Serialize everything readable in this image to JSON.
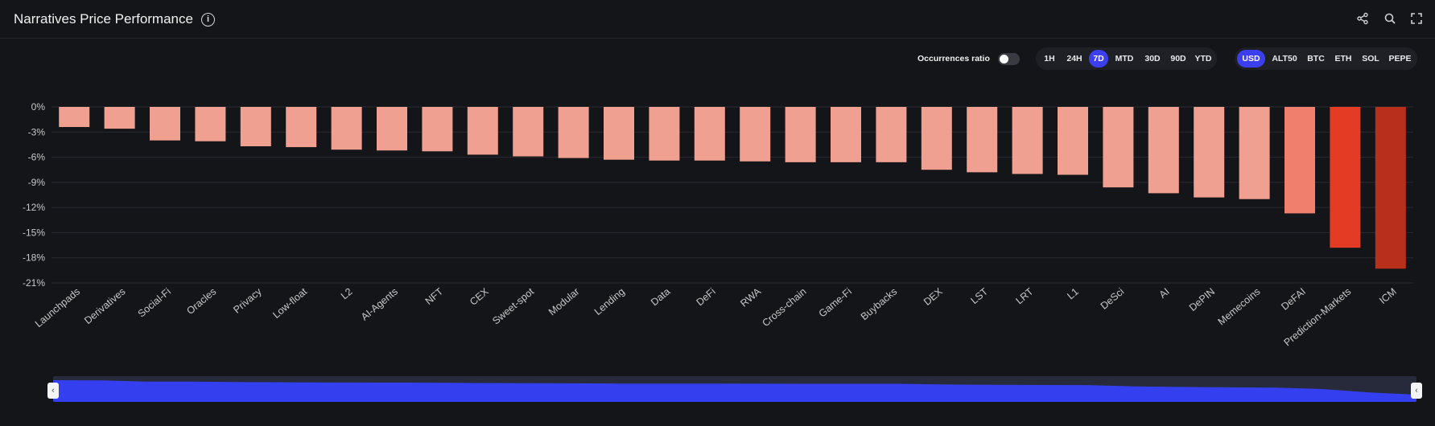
{
  "header": {
    "title": "Narratives Price Performance",
    "info_glyph": "i",
    "icons": [
      "share-icon",
      "search-icon",
      "fullscreen-icon"
    ]
  },
  "controls": {
    "occurrences_label": "Occurrences ratio",
    "occurrences_on": false,
    "timeframes": [
      "1H",
      "24H",
      "7D",
      "MTD",
      "30D",
      "90D",
      "YTD"
    ],
    "active_timeframe": "7D",
    "currencies": [
      "USD",
      "ALT50",
      "BTC",
      "ETH",
      "SOL",
      "PEPE"
    ],
    "active_currency": "USD"
  },
  "colors": {
    "bar_light": "#f0a090",
    "bar_medium": "#f07f6e",
    "bar_strong": "#e43b24",
    "bar_deep": "#b8301c",
    "grid": "#2a2b31",
    "axis_text": "#c8c8c8",
    "accent": "#3b3ff0"
  },
  "chart_data": {
    "type": "bar",
    "title": "Narratives Price Performance",
    "xlabel": "",
    "ylabel": "",
    "ylim": [
      -21,
      0
    ],
    "yticks": [
      0,
      -3,
      -6,
      -9,
      -12,
      -15,
      -18,
      -21
    ],
    "ytick_labels": [
      "0%",
      "-3%",
      "-6%",
      "-9%",
      "-12%",
      "-15%",
      "-18%",
      "-21%"
    ],
    "grid": true,
    "categories": [
      "Launchpads",
      "Derivatives",
      "Social-Fi",
      "Oracles",
      "Privacy",
      "Low-float",
      "L2",
      "AI-Agents",
      "NFT",
      "CEX",
      "Sweet-spot",
      "Modular",
      "Lending",
      "Data",
      "DeFi",
      "RWA",
      "Cross-chain",
      "Game-Fi",
      "Buybacks",
      "DEX",
      "LST",
      "LRT",
      "L1",
      "DeSci",
      "AI",
      "DePIN",
      "Memecoins",
      "DeFAI",
      "Prediction-Markets",
      "ICM"
    ],
    "values": [
      -2.4,
      -2.6,
      -4.0,
      -4.1,
      -4.7,
      -4.8,
      -5.1,
      -5.2,
      -5.3,
      -5.7,
      -5.9,
      -6.1,
      -6.3,
      -6.4,
      -6.4,
      -6.5,
      -6.6,
      -6.6,
      -6.6,
      -7.5,
      -7.8,
      -8.0,
      -8.1,
      -9.6,
      -10.3,
      -10.8,
      -11.0,
      -12.7,
      -16.8,
      -19.3
    ],
    "navigator": {
      "range_start": 0,
      "range_end": 1
    }
  }
}
